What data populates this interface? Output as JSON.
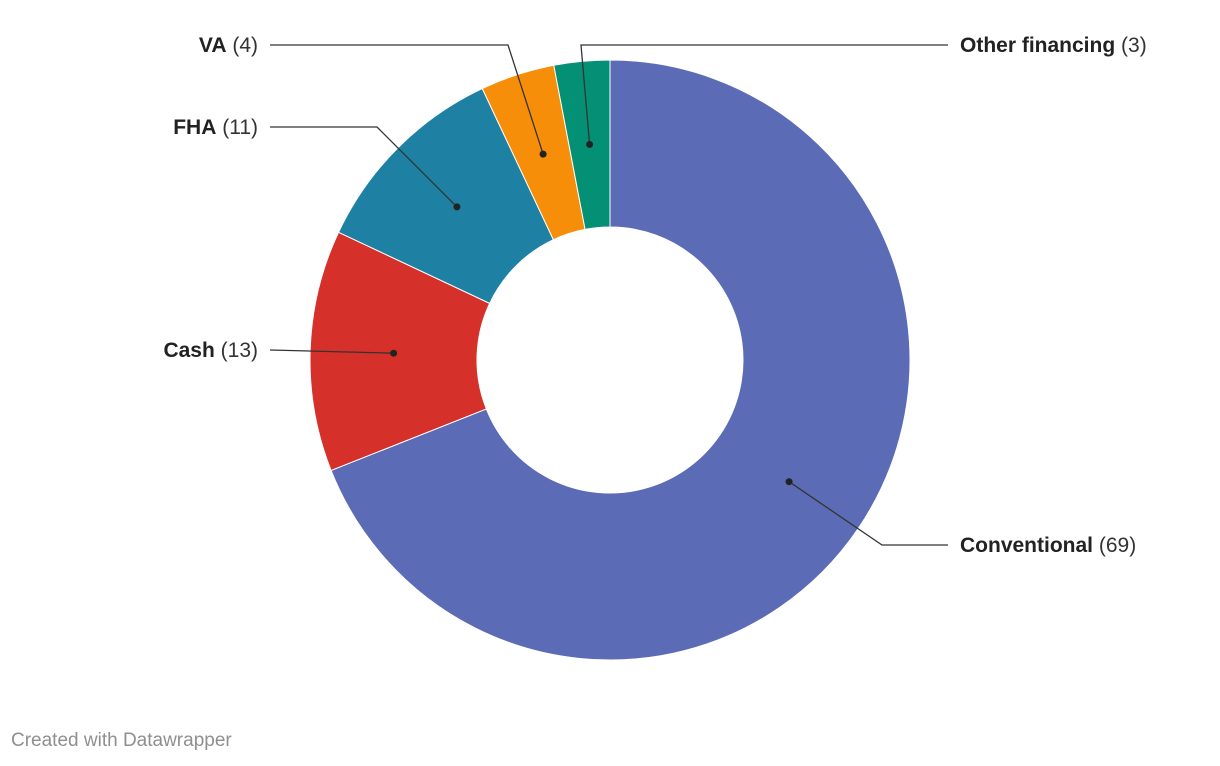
{
  "chart_data": {
    "type": "pie",
    "donut": true,
    "start": "top, clockwise",
    "series": [
      {
        "name": "",
        "categories": [
          "Conventional",
          "Cash",
          "FHA",
          "VA",
          "Other financing"
        ],
        "values": [
          69,
          13,
          11,
          4,
          3
        ],
        "colors": [
          "#5c6bb6",
          "#d6302b",
          "#1e81a3",
          "#f78e09",
          "#039075"
        ]
      }
    ],
    "value_labels": [
      "(69)",
      "(13)",
      "(11)",
      "(4)",
      "(3)"
    ],
    "legend": "none",
    "labels": "outside with leader lines"
  },
  "footer": {
    "credit": "Created with Datawrapper"
  }
}
